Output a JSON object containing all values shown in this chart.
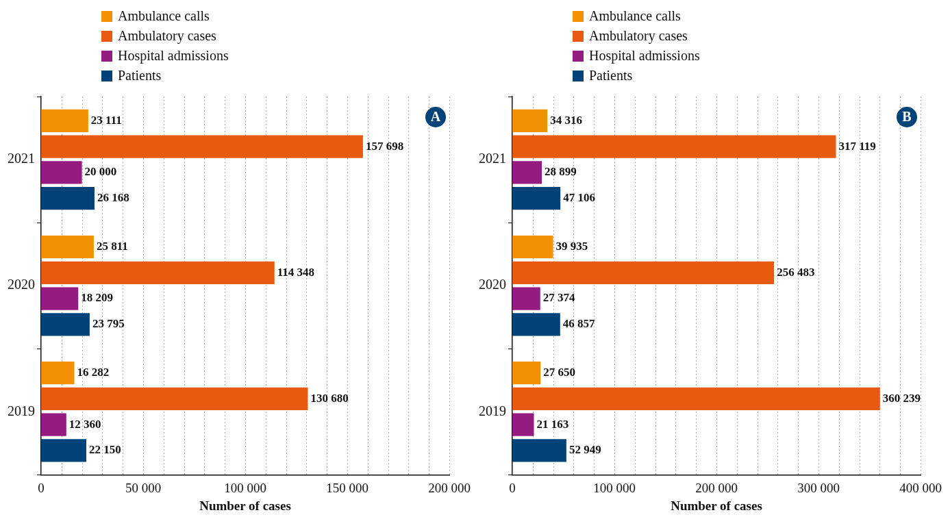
{
  "chart_data": [
    {
      "type": "bar",
      "orientation": "horizontal",
      "xlabel": "Number of cases",
      "categories": [
        "2021",
        "2020",
        "2019"
      ],
      "annotations": [
        "A"
      ],
      "legend": "top left",
      "grid": "x",
      "xlim": [
        0,
        200000
      ],
      "xticks": [
        0,
        {
          "value": 10000,
          "label": null
        },
        {
          "value": 20000,
          "label": null
        },
        {
          "value": 30000,
          "label": null
        },
        {
          "value": 40000,
          "label": null
        },
        {
          "value": 50000,
          "label": "50 000"
        },
        {
          "value": 60000,
          "label": null
        },
        {
          "value": 70000,
          "label": null
        },
        {
          "value": 80000,
          "label": null
        },
        {
          "value": 90000,
          "label": null
        },
        {
          "value": 100000,
          "label": "100 000"
        },
        {
          "value": 110000,
          "label": null
        },
        {
          "value": 120000,
          "label": null
        },
        {
          "value": 130000,
          "label": null
        },
        {
          "value": 140000,
          "label": null
        },
        {
          "value": 150000,
          "label": "150 000"
        },
        {
          "value": 160000,
          "label": null
        },
        {
          "value": 170000,
          "label": null
        },
        {
          "value": 180000,
          "label": null
        },
        {
          "value": 190000,
          "label": null
        },
        {
          "value": 200000,
          "label": "200 000"
        }
      ],
      "series": [
        {
          "name": "Ambulance calls",
          "color": "#f39200",
          "values": [
            23111,
            25811,
            16282
          ],
          "value_labels": [
            "23 111",
            "25 811",
            "16 282"
          ]
        },
        {
          "name": "Ambulatory cases",
          "color": "#e85a0f",
          "values": [
            157698,
            114348,
            130680
          ],
          "value_labels": [
            "157 698",
            "114 348",
            "130 680"
          ]
        },
        {
          "name": "Hospital admissions",
          "color": "#951b81",
          "values": [
            20000,
            18209,
            12360
          ],
          "value_labels": [
            "20 000",
            "18 209",
            "12 360"
          ]
        },
        {
          "name": "Patients",
          "color": "#004379",
          "values": [
            26168,
            23795,
            22150
          ],
          "value_labels": [
            "26 168",
            "23 795",
            "22 150"
          ]
        }
      ]
    },
    {
      "type": "bar",
      "orientation": "horizontal",
      "xlabel": "Number of cases",
      "categories": [
        "2021",
        "2020",
        "2019"
      ],
      "annotations": [
        "B"
      ],
      "legend": "top left",
      "grid": "x",
      "xlim": [
        0,
        400000
      ],
      "xticks": [
        0,
        {
          "value": 20000,
          "label": null
        },
        {
          "value": 40000,
          "label": null
        },
        {
          "value": 60000,
          "label": null
        },
        {
          "value": 80000,
          "label": null
        },
        {
          "value": 100000,
          "label": "100 000"
        },
        {
          "value": 120000,
          "label": null
        },
        {
          "value": 140000,
          "label": null
        },
        {
          "value": 160000,
          "label": null
        },
        {
          "value": 180000,
          "label": null
        },
        {
          "value": 200000,
          "label": "200 000"
        },
        {
          "value": 220000,
          "label": null
        },
        {
          "value": 240000,
          "label": null
        },
        {
          "value": 260000,
          "label": null
        },
        {
          "value": 280000,
          "label": null
        },
        {
          "value": 300000,
          "label": "300 000"
        },
        {
          "value": 320000,
          "label": null
        },
        {
          "value": 340000,
          "label": null
        },
        {
          "value": 360000,
          "label": null
        },
        {
          "value": 380000,
          "label": null
        },
        {
          "value": 400000,
          "label": "400 000"
        }
      ],
      "series": [
        {
          "name": "Ambulance calls",
          "color": "#f39200",
          "values": [
            34316,
            39935,
            27650
          ],
          "value_labels": [
            "34 316",
            "39 935",
            "27 650"
          ]
        },
        {
          "name": "Ambulatory cases",
          "color": "#e85a0f",
          "values": [
            317119,
            256483,
            360239
          ],
          "value_labels": [
            "317 119",
            "256 483",
            "360 239"
          ]
        },
        {
          "name": "Hospital admissions",
          "color": "#951b81",
          "values": [
            28899,
            27374,
            21163
          ],
          "value_labels": [
            "28 899",
            "27 374",
            "21 163"
          ]
        },
        {
          "name": "Patients",
          "color": "#004379",
          "values": [
            47106,
            46857,
            52949
          ],
          "value_labels": [
            "47 106",
            "46 857",
            "52 949"
          ]
        }
      ]
    }
  ]
}
